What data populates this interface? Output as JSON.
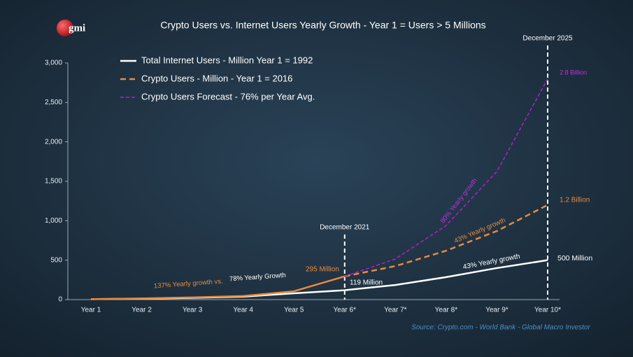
{
  "logo": "gmi",
  "chart_data": {
    "type": "line",
    "title": "Crypto Users vs. Internet Users Yearly Growth - Year 1 = Users > 5 Millions",
    "categories": [
      "Year 1",
      "Year 2",
      "Year 3",
      "Year 4",
      "Year 5",
      "Year 6*",
      "Year 7*",
      "Year 8*",
      "Year 9*",
      "Year 10*"
    ],
    "series": [
      {
        "name": "Total Internet Users - Million Year 1 = 1992",
        "color": "#ffffff",
        "style": "solid",
        "values": [
          5,
          12,
          22,
          38,
          80,
          119,
          185,
          285,
          400,
          500
        ]
      },
      {
        "name": "Crypto Users - Million - Year 1 = 2016",
        "color": "#ea8a3a",
        "style": "dashed",
        "solid_until": "Year 6*",
        "values": [
          5,
          14,
          28,
          45,
          106,
          295,
          425,
          620,
          870,
          1200
        ]
      },
      {
        "name": "Crypto Users Forecast - 76% per Year Avg.",
        "color": "#b020c8",
        "style": "dashed",
        "values": [
          null,
          null,
          null,
          null,
          null,
          295,
          515,
          940,
          1625,
          2800
        ]
      }
    ],
    "ylim": [
      0,
      3000
    ],
    "yticks": [
      0,
      500,
      {
        "value": 1000,
        "label": "1,000"
      },
      {
        "value": 1500,
        "label": "1,500"
      },
      {
        "value": 2000,
        "label": "2,000"
      },
      {
        "value": 2500,
        "label": "2,500"
      },
      {
        "value": 3000,
        "label": "3,000"
      }
    ],
    "markers": [
      {
        "category": "Year 6*",
        "label": "December 2021"
      },
      {
        "category": "Year 10*",
        "label": "December 2025"
      }
    ],
    "annotations": [
      {
        "text": "2.8 Billion",
        "color": "#c030e0"
      },
      {
        "text": "1.2 Billion",
        "color": "#ea8a3a"
      },
      {
        "text": "500 Million",
        "color": "#ffffff"
      },
      {
        "text": "295 Million",
        "color": "#ea8a3a"
      },
      {
        "text": "119 Million",
        "color": "#ffffff"
      },
      {
        "text": "137% Yearly growth vs.",
        "color": "#ea8a3a"
      },
      {
        "text": "78% Yearly Growth",
        "color": "#ffffff"
      },
      {
        "text": "43% Yearly growth",
        "color": "#ea8a3a"
      },
      {
        "text": "43% Yearly growth",
        "color": "#ffffff"
      },
      {
        "text": "80% Yearly growth",
        "color": "#c030e0"
      }
    ],
    "source": "Source: Crypto.com - World Bank - Global Macro Investor"
  }
}
